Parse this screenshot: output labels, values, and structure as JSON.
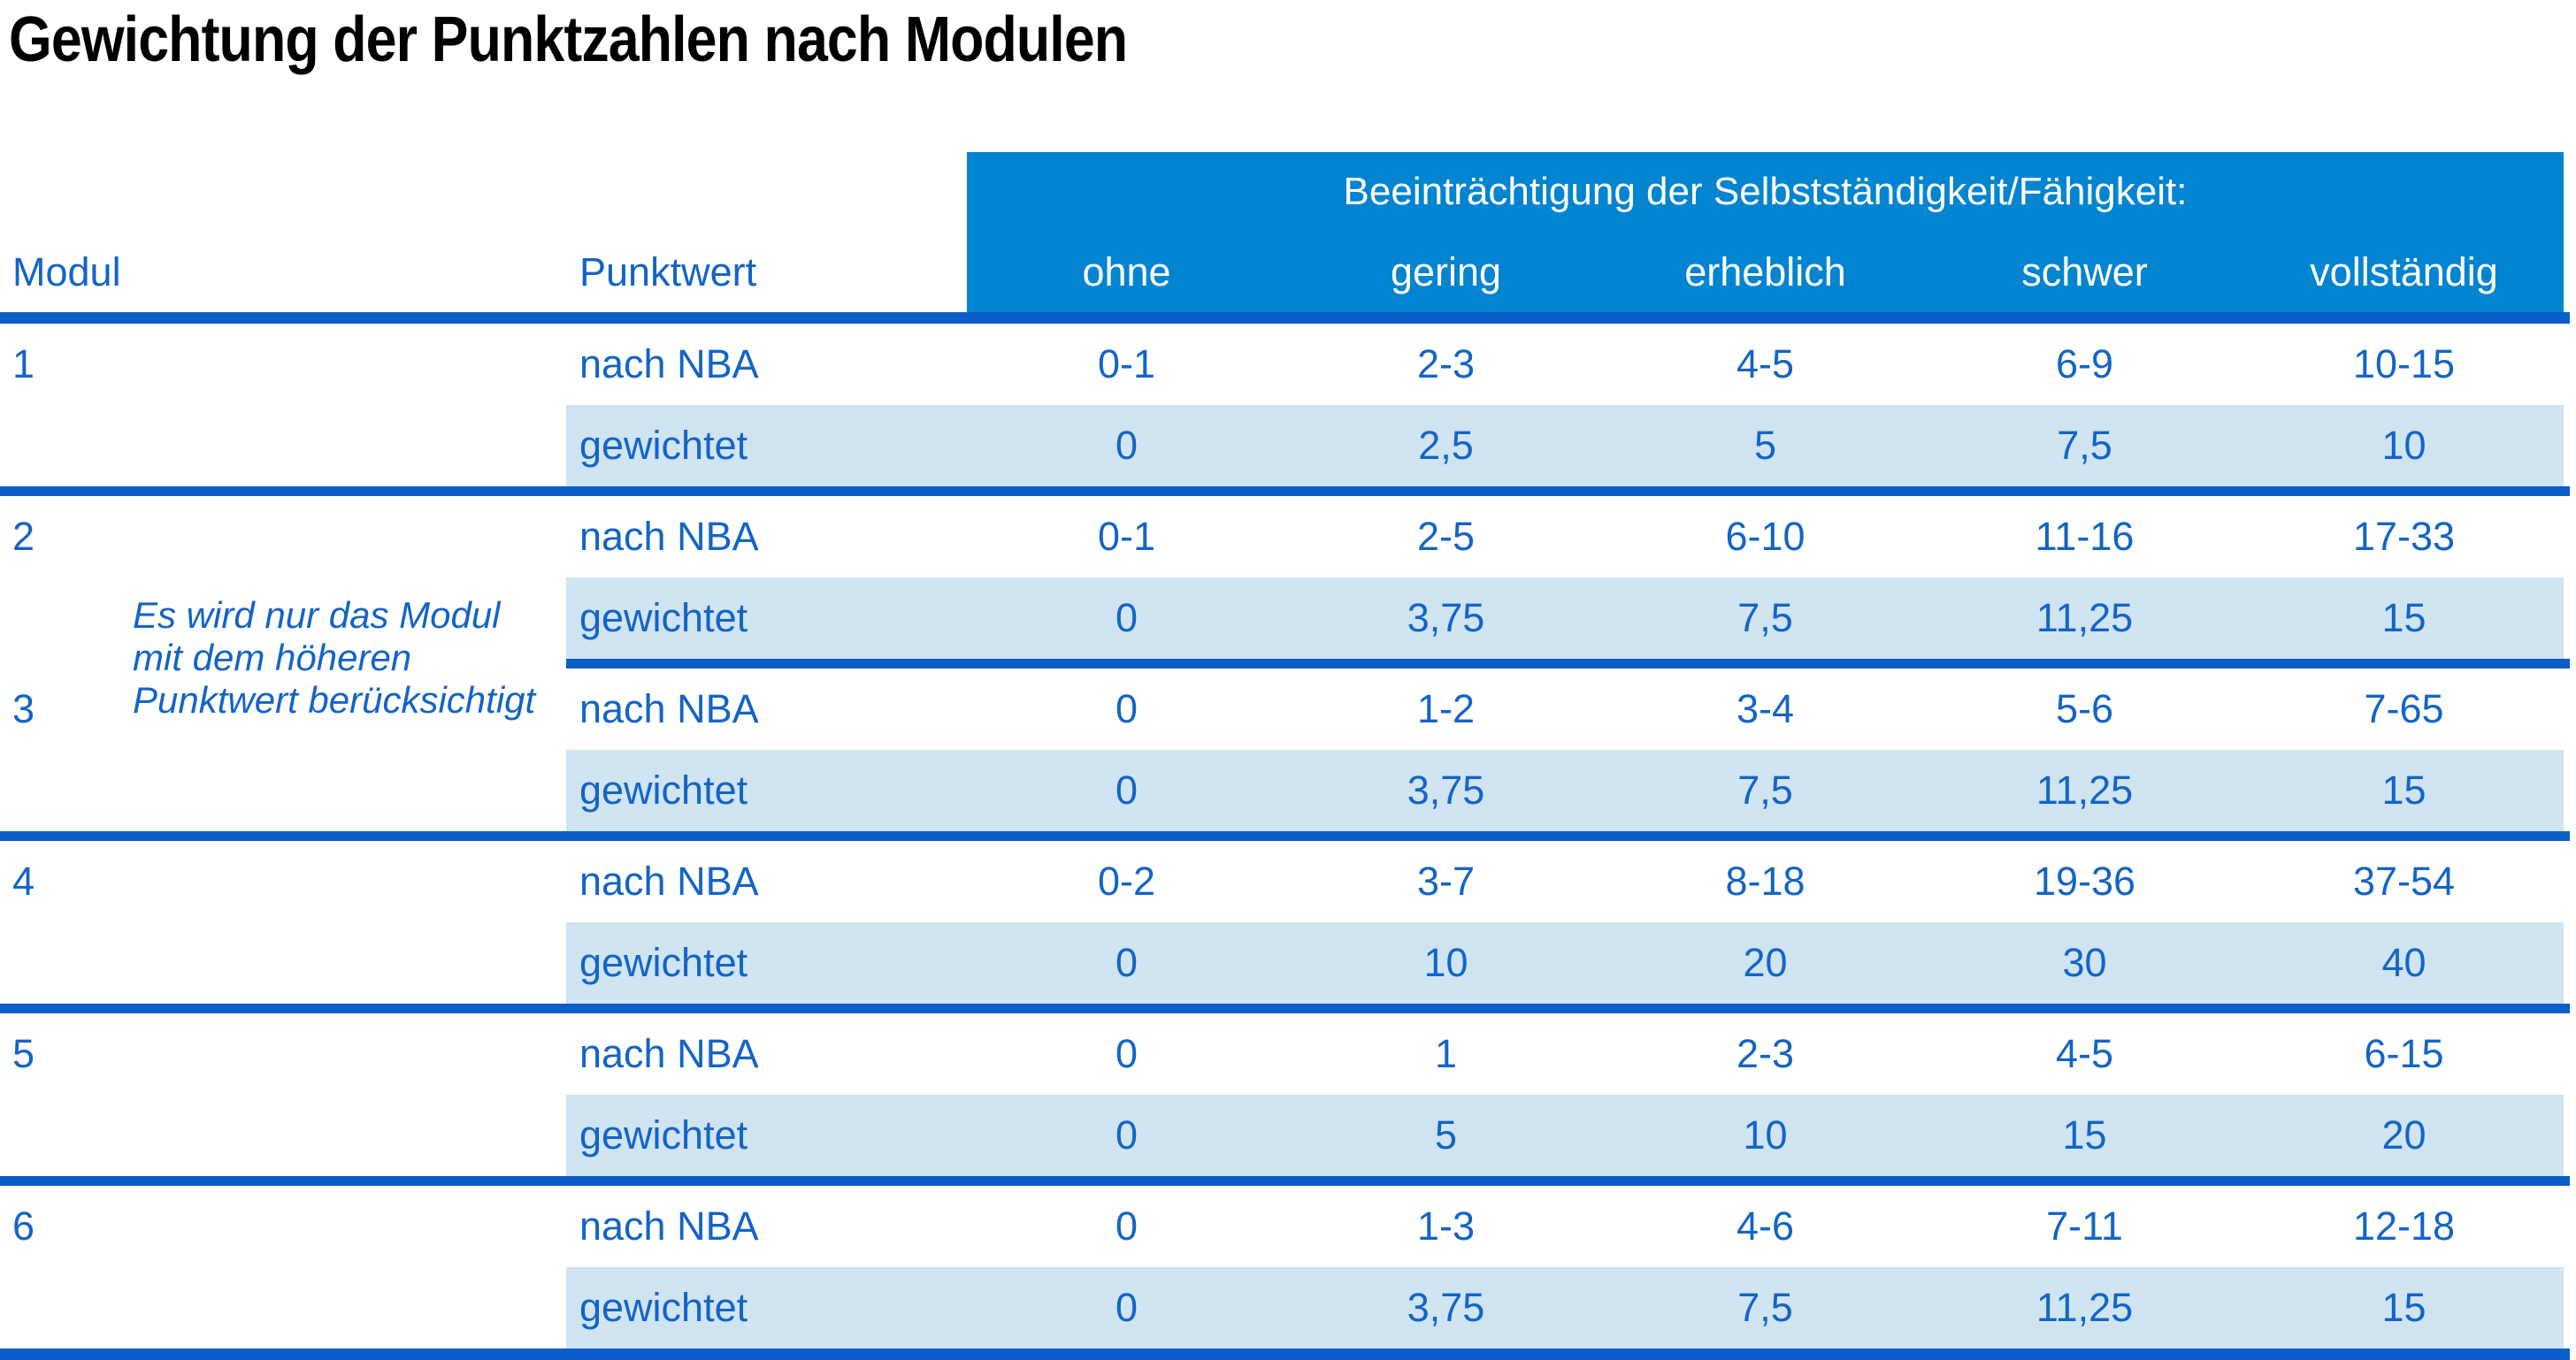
{
  "title": "Gewichtung der Punktzahlen nach Modulen",
  "colors": {
    "header_bg": "#0284d0",
    "separator": "#0b5ec8",
    "shaded_row_bg": "#d0e4f2",
    "text_blue": "#1464c6",
    "header_text": "#ffffff"
  },
  "table": {
    "group_header": "Beeinträchtigung der Selbstständigkeit/Fähigkeit:",
    "col_modul": "Modul",
    "col_punktwert": "Punktwert",
    "levels": [
      "ohne",
      "gering",
      "erheblich",
      "schwer",
      "vollständig"
    ],
    "note": {
      "line1": "Es wird nur das Modul",
      "line2": "mit dem höheren",
      "line3": "Punktwert berücksichtigt"
    },
    "modules": [
      {
        "number": "1",
        "nba_label": "nach NBA",
        "nba_values": [
          "0-1",
          "2-3",
          "4-5",
          "6-9",
          "10-15"
        ],
        "gew_label": "gewichtet",
        "gew_values": [
          "0",
          "2,5",
          "5",
          "7,5",
          "10"
        ]
      },
      {
        "number": "2",
        "nba_label": "nach NBA",
        "nba_values": [
          "0-1",
          "2-5",
          "6-10",
          "11-16",
          "17-33"
        ],
        "gew_label": "gewichtet",
        "gew_values": [
          "0",
          "3,75",
          "7,5",
          "11,25",
          "15"
        ]
      },
      {
        "number": "3",
        "nba_label": "nach NBA",
        "nba_values": [
          "0",
          "1-2",
          "3-4",
          "5-6",
          "7-65"
        ],
        "gew_label": "gewichtet",
        "gew_values": [
          "0",
          "3,75",
          "7,5",
          "11,25",
          "15"
        ]
      },
      {
        "number": "4",
        "nba_label": "nach NBA",
        "nba_values": [
          "0-2",
          "3-7",
          "8-18",
          "19-36",
          "37-54"
        ],
        "gew_label": "gewichtet",
        "gew_values": [
          "0",
          "10",
          "20",
          "30",
          "40"
        ]
      },
      {
        "number": "5",
        "nba_label": "nach NBA",
        "nba_values": [
          "0",
          "1",
          "2-3",
          "4-5",
          "6-15"
        ],
        "gew_label": "gewichtet",
        "gew_values": [
          "0",
          "5",
          "10",
          "15",
          "20"
        ]
      },
      {
        "number": "6",
        "nba_label": "nach NBA",
        "nba_values": [
          "0",
          "1-3",
          "4-6",
          "7-11",
          "12-18"
        ],
        "gew_label": "gewichtet",
        "gew_values": [
          "0",
          "3,75",
          "7,5",
          "11,25",
          "15"
        ]
      }
    ]
  }
}
